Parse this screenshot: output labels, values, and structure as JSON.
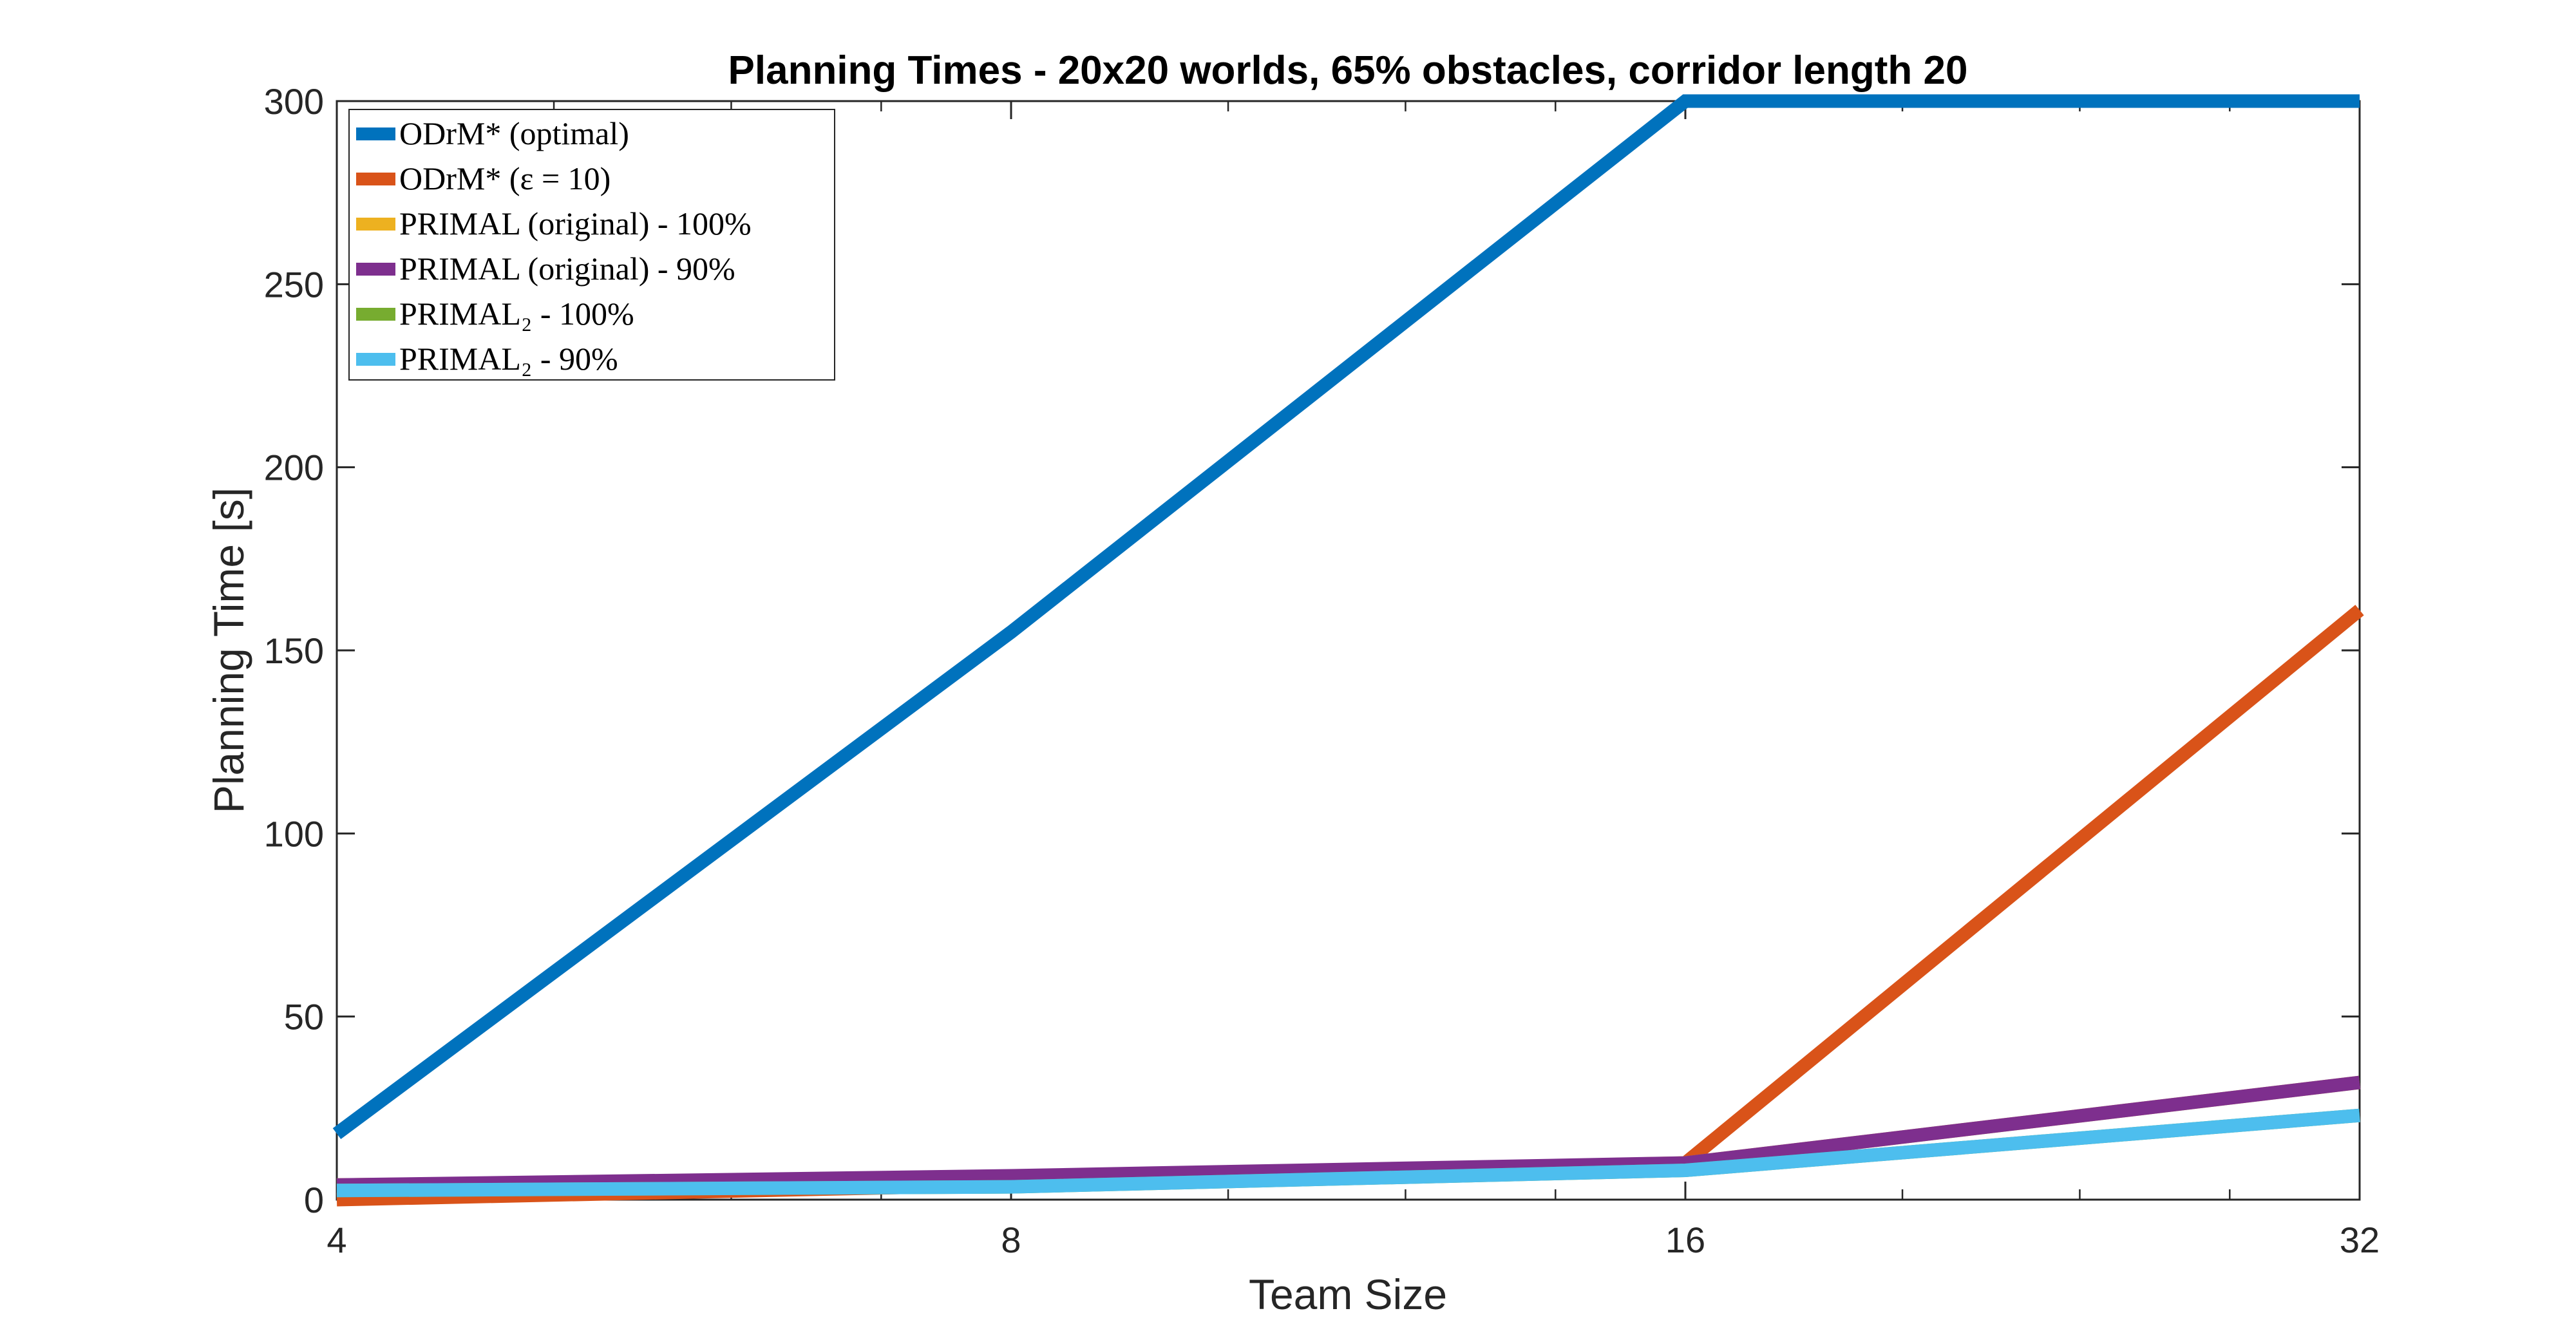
{
  "chart_data": {
    "type": "line",
    "title": "Planning Times - 20x20 worlds, 65% obstacles, corridor length 20",
    "xlabel": "Team Size",
    "ylabel": "Planning Time [s]",
    "x": [
      4,
      8,
      16,
      32
    ],
    "xscale": "log2",
    "xlim": [
      4,
      32
    ],
    "ylim": [
      0,
      300
    ],
    "xticks": [
      "4",
      "8",
      "16",
      "32"
    ],
    "yticks": [
      "0",
      "50",
      "100",
      "150",
      "200",
      "250",
      "300"
    ],
    "grid": false,
    "legend_position": "top-left",
    "series": [
      {
        "name": "ODrM* (optimal)",
        "color": "#0072BD",
        "values": [
          18,
          155,
          300,
          300
        ]
      },
      {
        "name": "ODrM* (ε = 10)",
        "color": "#D95319",
        "values": [
          0,
          4,
          10,
          161
        ]
      },
      {
        "name": "PRIMAL (original) - 100%",
        "color": "#EDB120",
        "values": [
          4,
          6,
          10,
          32
        ]
      },
      {
        "name": "PRIMAL (original) - 90%",
        "color": "#7E2F8E",
        "values": [
          4,
          6.5,
          10,
          32
        ]
      },
      {
        "name": "PRIMAL₂ - 100%",
        "color": "#77AC30",
        "values": [
          2.5,
          3.5,
          8,
          23
        ]
      },
      {
        "name": "PRIMAL₂ - 90%",
        "color": "#4DBEEE",
        "values": [
          2.5,
          3.5,
          8,
          23
        ]
      }
    ]
  }
}
